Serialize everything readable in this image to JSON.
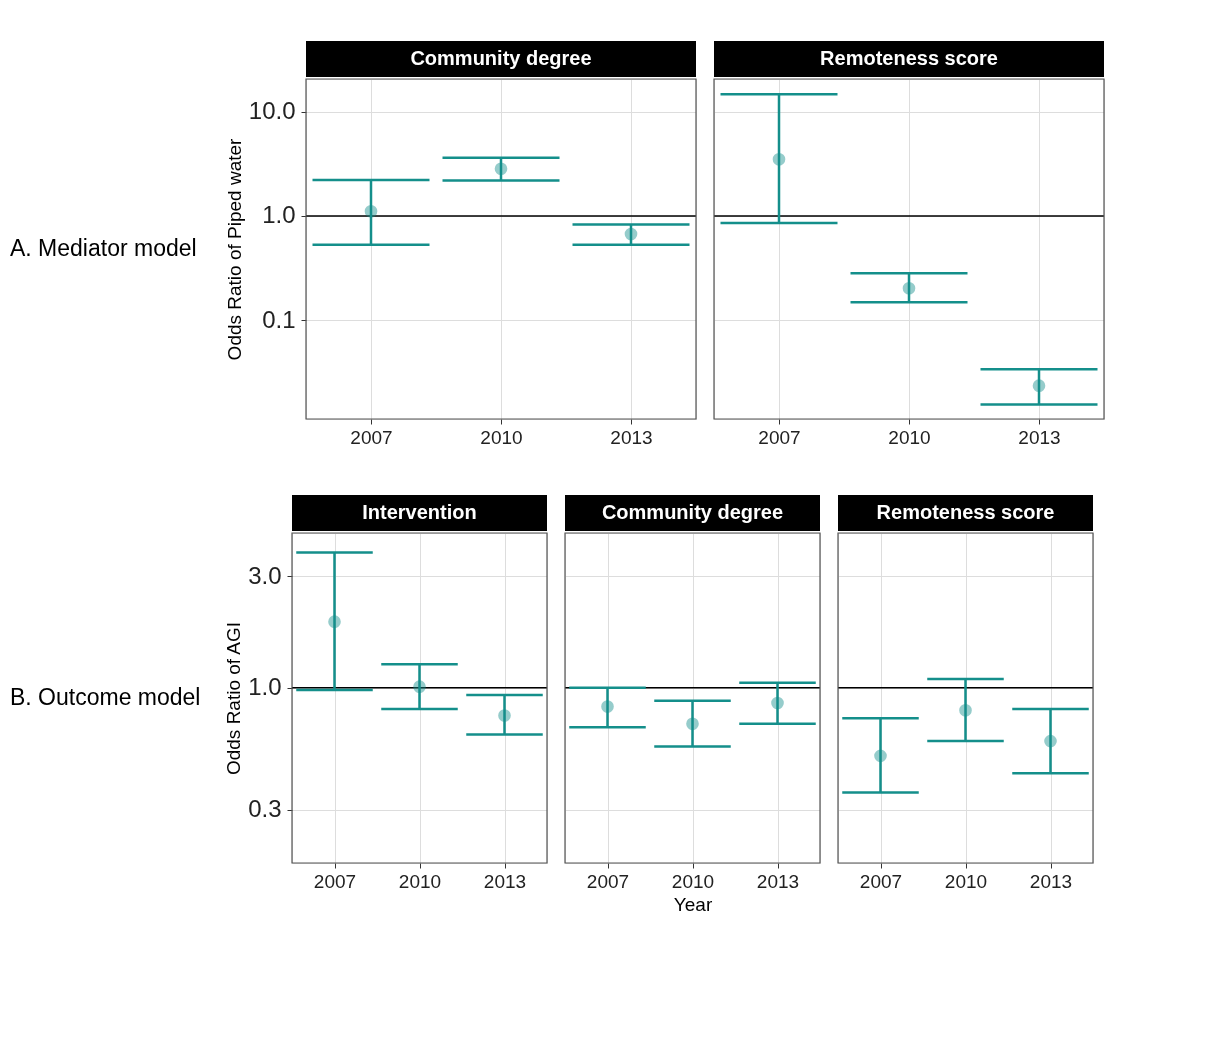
{
  "chart_data": [
    {
      "type": "scatter",
      "title": "Community degree",
      "ylabel": "Odds Ratio of Piped water",
      "annotations": [
        "A. Mediator model"
      ],
      "categories": [
        "2007",
        "2010",
        "2013"
      ],
      "log": true,
      "ylim": [
        0.0112,
        20.7
      ],
      "yticks": [
        {
          "value": 10,
          "label": "10.0"
        },
        {
          "value": 1,
          "label": "1.0"
        },
        {
          "value": 0.1,
          "label": "0.1"
        }
      ],
      "grid": true,
      "marker": "circle",
      "ref_lines": [
        {
          "axis": "y",
          "value": 1,
          "label": null,
          "color": "#000000"
        }
      ],
      "color": "#148f8b",
      "values": [
        1.11,
        2.84,
        0.67
      ],
      "errors": [
        [
          0.53,
          2.22
        ],
        [
          2.19,
          3.62
        ],
        [
          0.53,
          0.83
        ]
      ]
    },
    {
      "type": "scatter",
      "title": "Remoteness score",
      "categories": [
        "2007",
        "2010",
        "2013"
      ],
      "log": true,
      "ylim": [
        0.0112,
        20.7
      ],
      "yticks": [
        10,
        1,
        0.1
      ],
      "tick_labels": "x",
      "grid": true,
      "marker": "circle",
      "ref_lines": [
        {
          "axis": "y",
          "value": 1,
          "label": null,
          "color": "#000000"
        }
      ],
      "color": "#148f8b",
      "values": [
        3.5,
        0.202,
        0.0234
      ],
      "errors": [
        [
          0.855,
          14.8
        ],
        [
          0.148,
          0.281
        ],
        [
          0.0154,
          0.0337
        ]
      ]
    },
    {
      "type": "scatter",
      "title": "Intervention",
      "ylabel": "Odds Ratio of AGI",
      "annotations": [
        "B. Outcome model"
      ],
      "categories": [
        "2007",
        "2010",
        "2013"
      ],
      "log": true,
      "ylim": [
        0.177,
        4.61
      ],
      "yticks": [
        {
          "value": 3,
          "label": "3.0"
        },
        {
          "value": 1,
          "label": "1.0"
        },
        {
          "value": 0.3,
          "label": "0.3"
        }
      ],
      "grid": true,
      "marker": "circle",
      "ref_lines": [
        {
          "axis": "y",
          "value": 1,
          "label": null,
          "color": "#000000"
        }
      ],
      "color": "#148f8b",
      "values": [
        1.92,
        1.01,
        0.76
      ],
      "errors": [
        [
          0.977,
          3.8
        ],
        [
          0.81,
          1.26
        ],
        [
          0.63,
          0.93
        ]
      ]
    },
    {
      "type": "scatter",
      "title": "Community degree",
      "xlabel": "Year",
      "categories": [
        "2007",
        "2010",
        "2013"
      ],
      "log": true,
      "ylim": [
        0.177,
        4.61
      ],
      "yticks": [
        3,
        1,
        0.3
      ],
      "tick_labels": "x",
      "grid": true,
      "marker": "circle",
      "ref_lines": [
        {
          "axis": "y",
          "value": 1,
          "label": null,
          "color": "#000000"
        }
      ],
      "color": "#148f8b",
      "values": [
        0.83,
        0.7,
        0.86
      ],
      "errors": [
        [
          0.676,
          1.0
        ],
        [
          0.56,
          0.88
        ],
        [
          0.7,
          1.05
        ]
      ]
    },
    {
      "type": "scatter",
      "title": "Remoteness score",
      "categories": [
        "2007",
        "2010",
        "2013"
      ],
      "log": true,
      "ylim": [
        0.177,
        4.61
      ],
      "yticks": [
        3,
        1,
        0.3
      ],
      "tick_labels": "x",
      "grid": true,
      "marker": "circle",
      "ref_lines": [
        {
          "axis": "y",
          "value": 1,
          "label": null,
          "color": "#000000"
        }
      ],
      "color": "#148f8b",
      "values": [
        0.51,
        0.8,
        0.59
      ],
      "errors": [
        [
          0.355,
          0.74
        ],
        [
          0.59,
          1.09
        ],
        [
          0.43,
          0.81
        ]
      ]
    }
  ]
}
